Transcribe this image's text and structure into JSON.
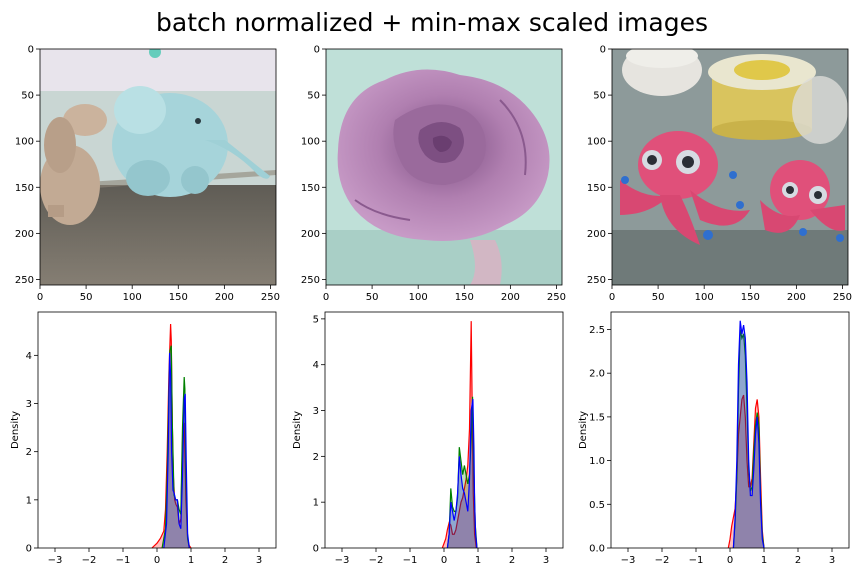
{
  "figure": {
    "title": "batch normalized + min-max scaled images"
  },
  "images": [
    {
      "subject": "plush camel and light-blue elephant on wooden table",
      "xticks": [
        "0",
        "50",
        "100",
        "150",
        "200",
        "250"
      ],
      "yticks": [
        "0",
        "50",
        "100",
        "150",
        "200",
        "250"
      ],
      "colors": {
        "background": "#c9d6d3",
        "wall_top": "#e8e4ec",
        "table": "#6e6a62",
        "elephant": "#a6d4da",
        "camel": "#c2aa94"
      }
    },
    {
      "subject": "purple clay rose",
      "xticks": [
        "0",
        "50",
        "100",
        "150",
        "200",
        "250"
      ],
      "yticks": [
        "0",
        "50",
        "100",
        "150",
        "200",
        "250"
      ],
      "colors": {
        "background": "#bfe0d8",
        "petals": "#b07fb0",
        "petal_shadow": "#8a5a8e",
        "stem": "#d2b7c4"
      }
    },
    {
      "subject": "pink clay octopuses with containers of clay",
      "xticks": [
        "0",
        "50",
        "100",
        "150",
        "200",
        "250"
      ],
      "yticks": [
        "0",
        "50",
        "100",
        "150",
        "200",
        "250"
      ],
      "colors": {
        "background": "#8d9a9a",
        "octopus": "#e0507a",
        "container": "#e9e6cf",
        "lid": "#e0c84a",
        "eyes": "#d6dbe2",
        "spots": "#2f6fcf"
      }
    }
  ],
  "chart_data": [
    {
      "type": "area",
      "xlim": [
        -3.5,
        3.5
      ],
      "ylim": [
        0,
        4.9
      ],
      "xticks": [
        "−3",
        "−2",
        "−1",
        "0",
        "1",
        "2",
        "3"
      ],
      "yticks": [
        "0",
        "1",
        "2",
        "3",
        "4"
      ],
      "ylabel": "Density",
      "series": [
        {
          "color": "#ff0000",
          "x": [
            -0.15,
            0.0,
            0.1,
            0.2,
            0.25,
            0.3,
            0.35,
            0.4,
            0.42,
            0.45,
            0.48,
            0.52,
            0.56,
            0.6,
            0.65,
            0.7,
            0.75,
            0.8,
            0.85,
            0.9,
            0.95,
            1.0
          ],
          "y": [
            0,
            0.1,
            0.2,
            0.35,
            0.8,
            2.0,
            3.6,
            4.65,
            4.3,
            2.6,
            1.5,
            1.0,
            0.9,
            0.85,
            0.5,
            0.6,
            2.2,
            2.6,
            1.0,
            0.2,
            0.05,
            0
          ]
        },
        {
          "color": "#008000",
          "x": [
            0.15,
            0.25,
            0.3,
            0.35,
            0.38,
            0.42,
            0.45,
            0.5,
            0.55,
            0.6,
            0.65,
            0.7,
            0.75,
            0.8,
            0.82,
            0.85,
            0.9,
            0.95
          ],
          "y": [
            0,
            0.4,
            1.5,
            3.3,
            4.1,
            4.2,
            2.6,
            1.1,
            1.0,
            1.0,
            0.8,
            0.7,
            2.5,
            3.55,
            3.3,
            1.5,
            0.2,
            0
          ]
        },
        {
          "color": "#0000ff",
          "x": [
            0.2,
            0.28,
            0.33,
            0.37,
            0.4,
            0.43,
            0.47,
            0.5,
            0.55,
            0.6,
            0.65,
            0.7,
            0.75,
            0.8,
            0.83,
            0.86,
            0.9,
            0.95
          ],
          "y": [
            0,
            0.5,
            2.0,
            4.05,
            3.6,
            2.0,
            1.2,
            1.15,
            1.0,
            1.0,
            0.5,
            0.4,
            1.5,
            3.1,
            3.2,
            1.8,
            0.3,
            0
          ]
        }
      ]
    },
    {
      "type": "area",
      "xlim": [
        -3.5,
        3.5
      ],
      "ylim": [
        0,
        5.15
      ],
      "xticks": [
        "−3",
        "−2",
        "−1",
        "0",
        "1",
        "2",
        "3"
      ],
      "yticks": [
        "0",
        "1",
        "2",
        "3",
        "4",
        "5"
      ],
      "ylabel": "Density",
      "series": [
        {
          "color": "#ff0000",
          "x": [
            -0.05,
            0.05,
            0.1,
            0.15,
            0.2,
            0.25,
            0.3,
            0.35,
            0.4,
            0.45,
            0.5,
            0.55,
            0.6,
            0.65,
            0.7,
            0.75,
            0.8,
            0.83,
            0.86,
            0.9,
            0.95
          ],
          "y": [
            0,
            0.2,
            0.4,
            0.55,
            0.5,
            0.3,
            0.3,
            0.4,
            0.6,
            0.8,
            1.0,
            1.1,
            1.3,
            1.5,
            1.8,
            2.6,
            4.95,
            3.0,
            1.2,
            0.3,
            0
          ]
        },
        {
          "color": "#008000",
          "x": [
            0.1,
            0.15,
            0.2,
            0.25,
            0.3,
            0.35,
            0.4,
            0.45,
            0.5,
            0.55,
            0.6,
            0.65,
            0.7,
            0.75,
            0.8,
            0.84,
            0.88,
            0.92,
            0.97
          ],
          "y": [
            0,
            0.3,
            1.3,
            0.9,
            0.8,
            0.8,
            1.1,
            2.2,
            1.9,
            1.6,
            1.8,
            1.6,
            1.4,
            1.6,
            2.4,
            3.3,
            1.6,
            0.5,
            0
          ]
        },
        {
          "color": "#0000ff",
          "x": [
            0.1,
            0.15,
            0.2,
            0.25,
            0.3,
            0.35,
            0.4,
            0.45,
            0.5,
            0.55,
            0.6,
            0.65,
            0.7,
            0.75,
            0.8,
            0.85,
            0.88,
            0.9,
            0.93,
            0.97
          ],
          "y": [
            0,
            0.3,
            1.0,
            0.8,
            0.6,
            0.8,
            1.2,
            2.0,
            1.6,
            1.3,
            1.2,
            1.0,
            0.8,
            1.5,
            3.0,
            3.25,
            2.2,
            1.0,
            0.3,
            0
          ]
        }
      ]
    },
    {
      "type": "area",
      "xlim": [
        -3.5,
        3.5
      ],
      "ylim": [
        0,
        2.7
      ],
      "xticks": [
        "−3",
        "−2",
        "−1",
        "0",
        "1",
        "2",
        "3"
      ],
      "yticks": [
        "0.0",
        "0.5",
        "1.0",
        "1.5",
        "2.0",
        "2.5"
      ],
      "ylabel": "Density",
      "series": [
        {
          "color": "#ff0000",
          "x": [
            -0.05,
            0.0,
            0.05,
            0.1,
            0.15,
            0.2,
            0.25,
            0.3,
            0.35,
            0.4,
            0.45,
            0.5,
            0.55,
            0.6,
            0.65,
            0.7,
            0.75,
            0.8,
            0.85,
            0.9,
            0.95,
            1.0
          ],
          "y": [
            0,
            0.1,
            0.25,
            0.35,
            0.45,
            0.8,
            1.3,
            1.5,
            1.7,
            1.75,
            1.5,
            1.0,
            0.7,
            0.7,
            0.8,
            1.2,
            1.6,
            1.7,
            1.5,
            0.8,
            0.2,
            0
          ]
        },
        {
          "color": "#008000",
          "x": [
            0.1,
            0.15,
            0.2,
            0.25,
            0.3,
            0.35,
            0.4,
            0.45,
            0.5,
            0.55,
            0.6,
            0.65,
            0.7,
            0.75,
            0.8,
            0.85,
            0.9,
            0.95,
            1.0
          ],
          "y": [
            0,
            0.3,
            0.8,
            1.8,
            2.5,
            2.4,
            2.45,
            2.2,
            1.6,
            0.9,
            0.65,
            0.7,
            1.1,
            1.4,
            1.55,
            1.4,
            0.6,
            0.15,
            0
          ]
        },
        {
          "color": "#0000ff",
          "x": [
            0.1,
            0.15,
            0.2,
            0.25,
            0.3,
            0.35,
            0.4,
            0.45,
            0.5,
            0.55,
            0.6,
            0.65,
            0.7,
            0.75,
            0.8,
            0.85,
            0.9,
            0.95,
            1.0
          ],
          "y": [
            0,
            0.35,
            1.0,
            2.1,
            2.6,
            2.45,
            2.55,
            2.4,
            1.9,
            1.0,
            0.6,
            0.6,
            0.9,
            1.3,
            1.5,
            1.2,
            0.5,
            0.1,
            0
          ]
        }
      ]
    }
  ]
}
